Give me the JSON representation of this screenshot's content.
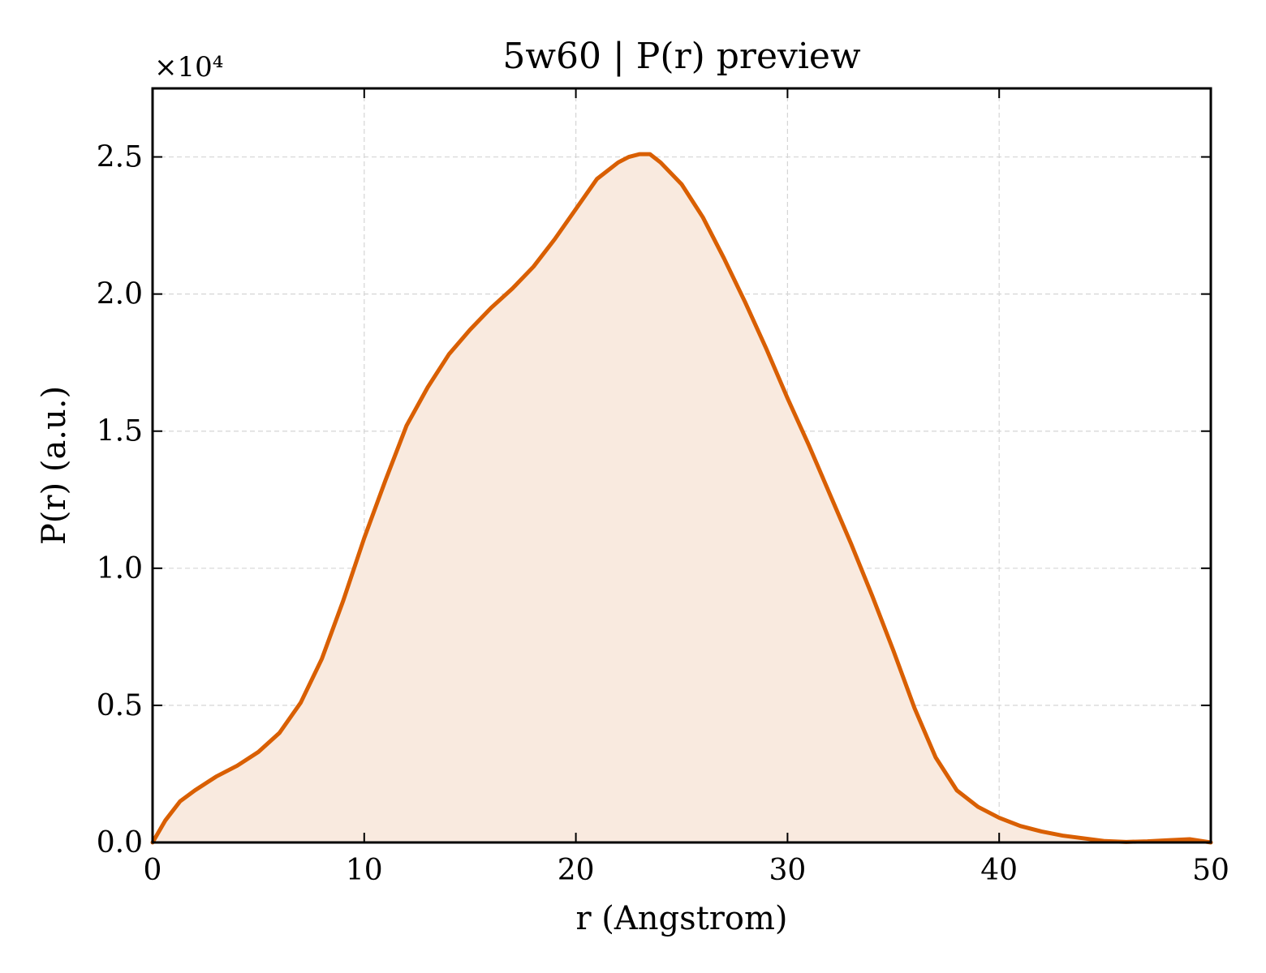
{
  "chart_data": {
    "type": "area",
    "title": "5w60 | P(r) preview",
    "xlabel": "r (Angstrom)",
    "ylabel": "P(r) (a.u.)",
    "y_offset_label": "×10⁴",
    "xlim": [
      0,
      50
    ],
    "ylim": [
      0,
      2.75
    ],
    "xticks": [
      0,
      10,
      20,
      30,
      40,
      50
    ],
    "xtick_labels": [
      "0",
      "10",
      "20",
      "30",
      "40",
      "50"
    ],
    "yticks": [
      0,
      0.5,
      1.0,
      1.5,
      2.0,
      2.5
    ],
    "ytick_labels": [
      "0.0",
      "0.5",
      "1.0",
      "1.5",
      "2.0",
      "2.5"
    ],
    "grid": true,
    "line_color": "#d95f02",
    "fill_color": "#f9eadf",
    "series": [
      {
        "x": [
          0,
          0.6,
          1.3,
          2,
          3,
          4,
          5,
          6,
          7,
          8,
          9,
          10,
          11,
          12,
          13,
          14,
          15,
          16,
          17,
          18,
          19,
          20,
          21,
          22,
          22.5,
          23,
          23.5,
          24,
          25,
          26,
          27,
          28,
          29,
          30,
          31,
          32,
          33,
          34,
          35,
          36,
          37,
          38,
          39,
          40,
          41,
          42,
          43,
          44,
          45,
          46,
          47,
          48,
          49,
          50
        ],
        "y": [
          0.0,
          0.08,
          0.15,
          0.19,
          0.24,
          0.28,
          0.33,
          0.4,
          0.51,
          0.67,
          0.88,
          1.11,
          1.32,
          1.52,
          1.66,
          1.78,
          1.87,
          1.95,
          2.02,
          2.1,
          2.2,
          2.31,
          2.42,
          2.48,
          2.5,
          2.51,
          2.51,
          2.48,
          2.4,
          2.28,
          2.13,
          1.97,
          1.8,
          1.62,
          1.45,
          1.27,
          1.09,
          0.9,
          0.7,
          0.49,
          0.31,
          0.19,
          0.13,
          0.09,
          0.06,
          0.04,
          0.025,
          0.015,
          0.005,
          0.002,
          0.004,
          0.008,
          0.012,
          0.0
        ]
      }
    ]
  }
}
